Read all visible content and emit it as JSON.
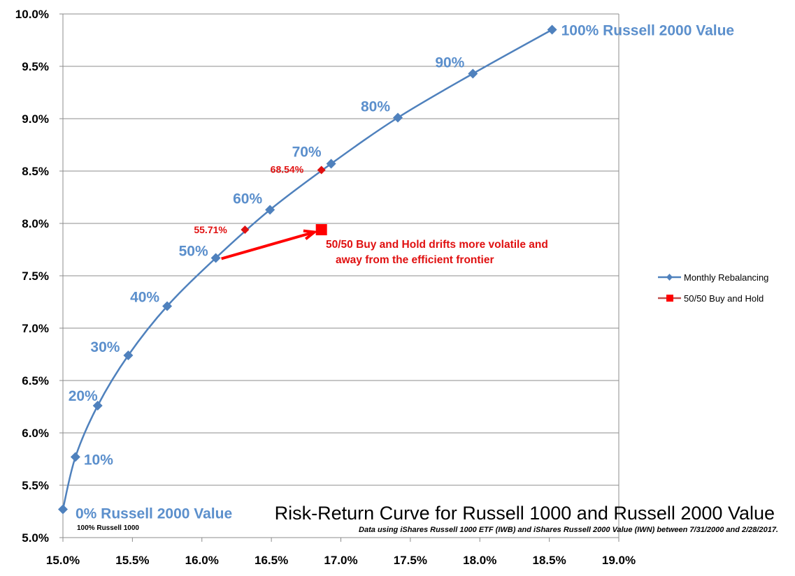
{
  "chart_data": {
    "type": "scatter",
    "title": "Risk-Return Curve for Russell 1000 and Russell 2000 Value",
    "subtitle": "Data using iShares Russell 1000 ETF (IWB) and iShares Russell 2000 Value (IWN) between 7/31/2000 and 2/28/2017.",
    "xlabel": "",
    "ylabel": "",
    "xlim": [
      15.0,
      19.0
    ],
    "ylim": [
      5.0,
      10.0
    ],
    "x_ticks": [
      "15.0%",
      "15.5%",
      "16.0%",
      "16.5%",
      "17.0%",
      "17.5%",
      "18.0%",
      "18.5%",
      "19.0%"
    ],
    "y_ticks": [
      "5.0%",
      "5.5%",
      "6.0%",
      "6.5%",
      "7.0%",
      "7.5%",
      "8.0%",
      "8.5%",
      "9.0%",
      "9.5%",
      "10.0%"
    ],
    "grid": "horizontal",
    "legend_position": "right",
    "series": [
      {
        "name": "Monthly Rebalancing",
        "color": "#4f81bd",
        "marker": "diamond",
        "x": [
          15.0,
          15.09,
          15.25,
          15.47,
          15.75,
          16.1,
          16.49,
          16.93,
          17.41,
          17.95,
          18.52
        ],
        "y": [
          5.27,
          5.77,
          6.26,
          6.74,
          7.21,
          7.67,
          8.13,
          8.57,
          9.01,
          9.43,
          9.85
        ],
        "point_labels": [
          "0% Russell 2000 Value",
          "10%",
          "20%",
          "30%",
          "40%",
          "50%",
          "60%",
          "70%",
          "80%",
          "90%",
          "100% Russell 2000 Value"
        ]
      },
      {
        "name": "50/50 Buy and Hold",
        "color": "#ff0000",
        "marker": "square",
        "x": [
          16.86
        ],
        "y": [
          7.94
        ]
      }
    ],
    "extra_points": [
      {
        "label": "55.71%",
        "x": 16.31,
        "y": 7.94,
        "color": "#e01010"
      },
      {
        "label": "68.54%",
        "x": 16.86,
        "y": 8.51,
        "color": "#e01010"
      }
    ],
    "annotations": {
      "bottom_note": "100% Russell  1000",
      "arrow_text_1": "50/50 Buy and Hold drifts more volatile and",
      "arrow_text_2": "away from the efficient frontier"
    }
  }
}
